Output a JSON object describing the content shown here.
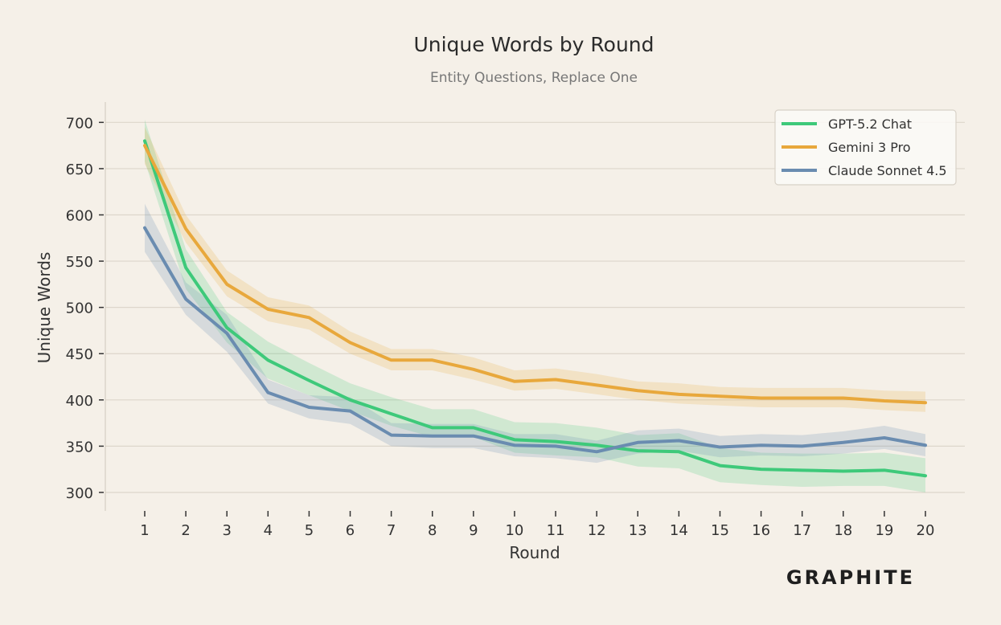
{
  "chart_data": {
    "type": "line",
    "title": "Unique Words by Round",
    "subtitle": "Entity Questions, Replace One",
    "xlabel": "Round",
    "ylabel": "Unique Words",
    "x": [
      1,
      2,
      3,
      4,
      5,
      6,
      7,
      8,
      9,
      10,
      11,
      12,
      13,
      14,
      15,
      16,
      17,
      18,
      19,
      20
    ],
    "ylim": [
      280,
      722
    ],
    "yticks": [
      300,
      350,
      400,
      450,
      500,
      550,
      600,
      650,
      700
    ],
    "grid": "horizontal",
    "legend_position": "top-right",
    "series": [
      {
        "name": "GPT-5.2 Chat",
        "color": "#3ec97a",
        "values": [
          680,
          543,
          478,
          443,
          421,
          400,
          385,
          370,
          370,
          357,
          355,
          351,
          345,
          344,
          329,
          325,
          324,
          323,
          324,
          318
        ],
        "lower": [
          658,
          520,
          462,
          423,
          405,
          388,
          372,
          360,
          360,
          343,
          340,
          338,
          328,
          326,
          311,
          308,
          306,
          307,
          307,
          300
        ],
        "upper": [
          703,
          563,
          495,
          463,
          440,
          418,
          403,
          390,
          390,
          376,
          375,
          370,
          362,
          364,
          348,
          343,
          342,
          342,
          343,
          337
        ]
      },
      {
        "name": "Gemini 3 Pro",
        "color": "#e8a83c",
        "values": [
          675,
          585,
          525,
          498,
          489,
          462,
          443,
          443,
          433,
          420,
          422,
          416,
          410,
          406,
          404,
          402,
          402,
          402,
          399,
          397
        ],
        "lower": [
          655,
          570,
          512,
          485,
          476,
          450,
          432,
          432,
          422,
          410,
          412,
          406,
          400,
          396,
          394,
          392,
          392,
          392,
          389,
          387
        ],
        "upper": [
          695,
          600,
          540,
          511,
          502,
          474,
          455,
          455,
          446,
          432,
          434,
          428,
          420,
          418,
          414,
          413,
          413,
          413,
          410,
          409
        ]
      },
      {
        "name": "Claude Sonnet 4.5",
        "color": "#6a8cb0",
        "values": [
          586,
          509,
          472,
          408,
          392,
          388,
          362,
          361,
          361,
          351,
          350,
          344,
          354,
          356,
          349,
          351,
          350,
          354,
          359,
          351
        ],
        "lower": [
          560,
          492,
          452,
          396,
          380,
          374,
          350,
          348,
          348,
          339,
          337,
          332,
          342,
          345,
          338,
          340,
          339,
          342,
          347,
          339
        ],
        "upper": [
          612,
          527,
          492,
          422,
          405,
          403,
          375,
          374,
          374,
          363,
          363,
          356,
          367,
          369,
          361,
          363,
          362,
          366,
          372,
          363
        ]
      }
    ]
  },
  "branding": {
    "logo": "GRAPHITE"
  }
}
